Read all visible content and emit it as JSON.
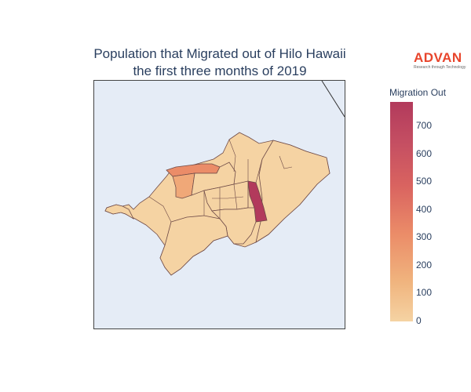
{
  "title": {
    "line1": "Population that Migrated out of Hilo Hawaii",
    "line2": "the first three months of 2019"
  },
  "logo": {
    "word": "ADVAN",
    "tagline": "Research through Technology",
    "color": "#e8452c"
  },
  "colorbar": {
    "title": "Migration Out",
    "ticks": [
      "0",
      "100",
      "200",
      "300",
      "400",
      "500",
      "600",
      "700"
    ],
    "range": [
      0,
      800
    ],
    "colorscale": [
      "#f5d3a3",
      "#f0b47e",
      "#eb8c68",
      "#d96360",
      "#c44e62",
      "#b23a5c"
    ]
  },
  "map": {
    "background": "#e5ecf6",
    "region_border": "#6e4a47",
    "regions": [
      {
        "id": "north-central",
        "value": 25
      },
      {
        "id": "northwest-tail",
        "value": 10
      },
      {
        "id": "coastal-strip",
        "value": 330
      },
      {
        "id": "coastal-west",
        "value": 280
      },
      {
        "id": "east-tract",
        "value": 790
      },
      {
        "id": "downtown-a",
        "value": 15
      },
      {
        "id": "downtown-b",
        "value": 20
      },
      {
        "id": "south-central",
        "value": 10
      },
      {
        "id": "south-tract",
        "value": 15
      },
      {
        "id": "east-large",
        "value": 20
      }
    ]
  }
}
